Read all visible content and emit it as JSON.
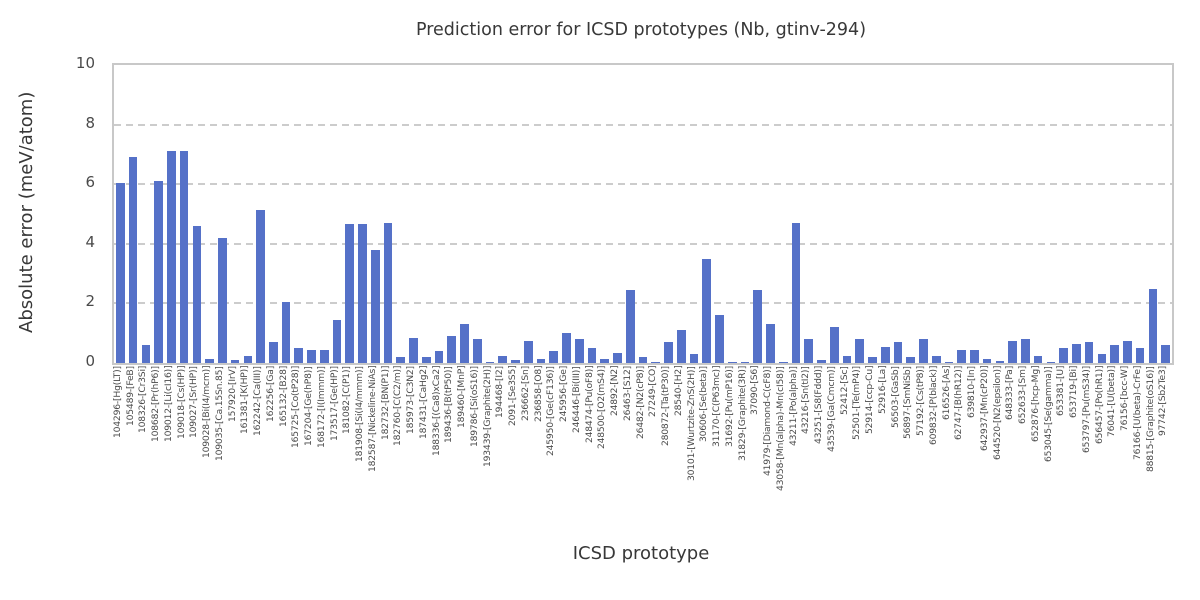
{
  "chart_data": {
    "type": "bar",
    "title": "Prediction error for ICSD prototypes (Nb, gtinv-294)",
    "xlabel": "ICSD prototype",
    "ylabel": "Absolute error (meV/atom)",
    "ylim": [
      0,
      10
    ],
    "yticks": [
      0,
      2,
      4,
      6,
      8,
      10
    ],
    "grid": "horizontal-dashed",
    "legend": "none",
    "bar_color": "#5571C8",
    "grid_color": "#CCCCCC",
    "spine_color": "#C8C8C8",
    "title_color": "#383838",
    "tick_text_color": "#4A4A4A",
    "categories": [
      "104296-[Hg(LT)]",
      "105489-[FeB]",
      "108326-[Cr3Si]",
      "108682-[Pr(hP6)]",
      "109012-[Li(cI16)]",
      "109018-[Cs(HP)]",
      "109027-[Sr(HP)]",
      "109028-[Bi(I4/mcm)]",
      "109035-[Ca.15Sn.85]",
      "157920-[IrV]",
      "161381-[K(HP)]",
      "162242-[Ca(III)]",
      "162256-[Ga]",
      "165132-[B28]",
      "165725-[Co(tP28)]",
      "167204-[Ge(hP8)]",
      "168172-[I(Immm)]",
      "173517-[Ge(HP)]",
      "181082-[C(P1)]",
      "181908-[Si(I4/mmm)]",
      "182587-[Nickeline-NiAs]",
      "182732-[BN(P1)]",
      "182760-[C(C2/m)]",
      "185973-[C3N2]",
      "187431-[CaHg2]",
      "188336-[(Ca8)xCa2]",
      "189436-[B(tP50)]",
      "189460-[MnP]",
      "189786-[Si(oS16)]",
      "193439-[Graphite(2H)]",
      "194468-[I2]",
      "2091-[Se3S5]",
      "236662-[Sn]",
      "236858-[O8]",
      "245950-[Ge(cF136)]",
      "245956-[Ge]",
      "246446-[Bi(III)]",
      "248474-[Pu(oF8)]",
      "248500-[O2(mS4)]",
      "24892-[N2]",
      "26463-[S12]",
      "26482-[N2(cP8)]",
      "27249-[CO]",
      "280872-[Ta(tP30)]",
      "28540-[H2]",
      "30101-[Wurtzite-ZnS(2H)]",
      "30606-[Se(beta)]",
      "31170-[C(P63mc)]",
      "31692-[Pu(mP16)]",
      "31829-[Graphite(3R)]",
      "37090-[S6]",
      "41979-[Diamond-C(cF8)]",
      "43058-[Mn(alpha)-Mn(cI58)]",
      "43211-[Po(alpha)]",
      "43216-[Sn(tI2)]",
      "43251-[S8(Fddd)]",
      "43539-[Ga(Cmcm)]",
      "52412-[Sc]",
      "52501-[Te(mP4)]",
      "52914-[ccp-Cu]",
      "52916-[La]",
      "56503-[GaSb]",
      "56897-[SmNiSb]",
      "57192-[Cs(tP8)]",
      "609832-[P(black)]",
      "616526-[As]",
      "62747-[B(hR12)]",
      "639810-[In]",
      "642937-[Mn(cP20)]",
      "644520-[N2(epsilon)]",
      "648333-[Pa]",
      "652633-[Sm]",
      "652876-[hcp-Mg]",
      "653045-[Se(gamma)]",
      "653381-[U]",
      "653719-[Bi]",
      "653797-[Pu(mS34)]",
      "656457-[Po(hR1)]",
      "76041-[U(beta)]",
      "76156-[bcc-W]",
      "76166-[U(beta)-CrFe]",
      "88815-[Graphite(oS16)]",
      "97742-[Sb2Te3]"
    ],
    "values": [
      6.05,
      6.9,
      0.6,
      6.1,
      7.1,
      7.1,
      4.6,
      0.15,
      4.2,
      0.1,
      0.25,
      5.15,
      0.7,
      2.05,
      0.5,
      0.45,
      0.45,
      1.45,
      4.65,
      4.65,
      3.8,
      4.7,
      0.2,
      0.85,
      0.2,
      0.4,
      0.9,
      1.3,
      0.8,
      0.03,
      0.25,
      0.1,
      0.75,
      0.15,
      0.4,
      1.0,
      0.8,
      0.5,
      0.15,
      0.35,
      2.45,
      0.2,
      0.05,
      0.7,
      1.1,
      0.3,
      3.5,
      1.6,
      0.03,
      0.03,
      2.45,
      1.3,
      0.03,
      4.7,
      0.8,
      0.1,
      1.2,
      0.25,
      0.8,
      0.2,
      0.55,
      0.7,
      0.2,
      0.8,
      0.25,
      0.03,
      0.45,
      0.45,
      0.12,
      0.08,
      0.75,
      0.8,
      0.25,
      0.03,
      0.5,
      0.65,
      0.7,
      0.3,
      0.6,
      0.75,
      0.5,
      2.5,
      0.6
    ]
  }
}
